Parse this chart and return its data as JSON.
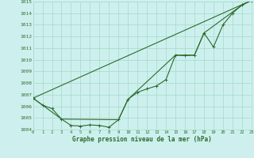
{
  "title": "Graphe pression niveau de la mer (hPa)",
  "background_color": "#cdf0ee",
  "grid_color": "#aaddcc",
  "line_color": "#2d6a2d",
  "x_min": 0,
  "x_max": 23,
  "y_min": 1004,
  "y_max": 1015,
  "x_ticks": [
    0,
    1,
    2,
    3,
    4,
    5,
    6,
    7,
    8,
    9,
    10,
    11,
    12,
    13,
    14,
    15,
    16,
    17,
    18,
    19,
    20,
    21,
    22,
    23
  ],
  "y_ticks": [
    1004,
    1005,
    1006,
    1007,
    1008,
    1009,
    1010,
    1011,
    1012,
    1013,
    1014,
    1015
  ],
  "series_main": {
    "x": [
      0,
      1,
      2,
      3,
      4,
      5,
      6,
      7,
      8,
      9,
      10,
      11,
      12,
      13,
      14,
      15,
      16,
      17,
      18,
      19,
      20,
      21,
      22,
      23
    ],
    "y": [
      1006.7,
      1006.1,
      1005.8,
      1004.9,
      1004.35,
      1004.3,
      1004.4,
      1004.35,
      1004.2,
      1004.85,
      1006.6,
      1007.2,
      1007.5,
      1007.75,
      1008.3,
      1010.4,
      1010.35,
      1010.4,
      1012.3,
      1011.1,
      1013.0,
      1014.0,
      1014.7,
      1015.1
    ]
  },
  "series_smooth": {
    "x": [
      0,
      3,
      9,
      10,
      15,
      17,
      18,
      22,
      23
    ],
    "y": [
      1006.7,
      1004.9,
      1004.85,
      1006.6,
      1010.4,
      1010.4,
      1012.3,
      1014.7,
      1015.1
    ]
  },
  "series_straight": {
    "x": [
      0,
      23
    ],
    "y": [
      1006.7,
      1015.1
    ]
  }
}
